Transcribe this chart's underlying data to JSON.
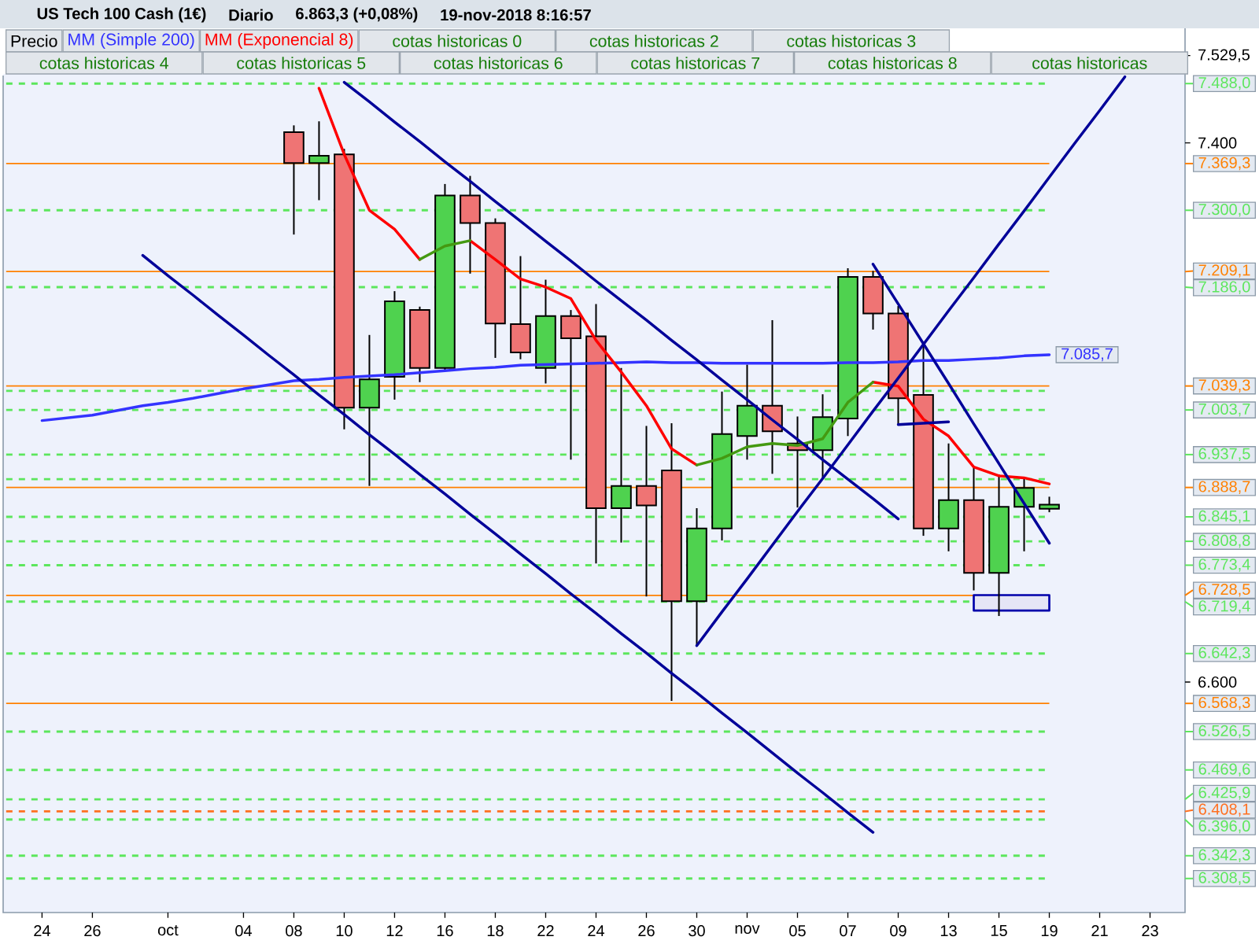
{
  "chart_data": {
    "type": "candlestick",
    "title": "US Tech 100 Cash (1€)",
    "subtitle": "Diario",
    "annotations": [
      "6.863,3 (+0,08%)",
      "19-nov-2018 8:16:57",
      "cotas historicas 0",
      "cotas historicas 2",
      "cotas historicas 3",
      "cotas historicas 4",
      "cotas historicas 5",
      "cotas historicas 6",
      "cotas historicas 7",
      "cotas historicas 8",
      "cotas historicas"
    ],
    "categories": [
      "24",
      null,
      "26",
      null,
      null,
      "oct",
      null,
      null,
      "04",
      null,
      "08",
      null,
      "10",
      null,
      "12",
      null,
      "16",
      null,
      "18",
      null,
      "22",
      null,
      "24",
      null,
      "26",
      null,
      "30",
      null,
      "nov",
      null,
      "05",
      null,
      "07",
      null,
      "09",
      null,
      "13",
      null,
      "15",
      null,
      "19",
      null,
      "21",
      null,
      "23"
    ],
    "ylim": [
      6258,
      7570
    ],
    "yticks": [
      {
        "value": 6600,
        "label": "6.600"
      },
      {
        "value": 7400,
        "label": "7.400"
      },
      {
        "value": 7529.5,
        "label": "7.529,5"
      }
    ],
    "legend": "top left",
    "series": [
      {
        "name": "Precio",
        "ohlc": [
          null,
          null,
          null,
          null,
          null,
          null,
          null,
          null,
          null,
          null,
          [
            7416,
            7426,
            7264,
            7370
          ],
          [
            7370,
            7432,
            7315,
            7381
          ],
          [
            7383,
            7391,
            6975,
            7007
          ],
          [
            7007,
            7115,
            6891,
            7049
          ],
          [
            7053,
            7180,
            7019,
            7165
          ],
          [
            7152,
            7157,
            7045,
            7066
          ],
          [
            7066,
            7339,
            7062,
            7322
          ],
          [
            7322,
            7351,
            7206,
            7281
          ],
          [
            7281,
            7288,
            7081,
            7132
          ],
          [
            7131,
            7232,
            7079,
            7089
          ],
          [
            7066,
            7197,
            7043,
            7143
          ],
          [
            7143,
            7152,
            6930,
            7110
          ],
          [
            7113,
            7161,
            6776,
            6858
          ],
          [
            6858,
            7066,
            6807,
            6891
          ],
          [
            6891,
            6980,
            6727,
            6862
          ],
          [
            6914,
            6984,
            6572,
            6720
          ],
          [
            6720,
            6858,
            6654,
            6828
          ],
          [
            6828,
            7031,
            6810,
            6968
          ],
          [
            6965,
            7071,
            6930,
            7010
          ],
          [
            7010,
            7137,
            6909,
            6972
          ],
          [
            6954,
            6994,
            6859,
            6944
          ],
          [
            6944,
            7027,
            6901,
            6993
          ],
          [
            6991,
            7214,
            6965,
            7201
          ],
          [
            7201,
            7210,
            7123,
            7147
          ],
          [
            7147,
            7158,
            6982,
            7021
          ],
          [
            7026,
            7099,
            6817,
            6828
          ],
          [
            6828,
            6954,
            6794,
            6870
          ],
          [
            6870,
            6918,
            6736,
            6762
          ],
          [
            6762,
            6905,
            6698,
            6860
          ],
          [
            6860,
            6902,
            6794,
            6888
          ],
          [
            6857,
            6875,
            6852,
            6863.3
          ],
          null,
          null,
          null,
          null
        ],
        "colors": [
          null,
          null,
          null,
          null,
          null,
          null,
          null,
          null,
          null,
          null,
          "#ef7474",
          "#4fd24f",
          "#ef7474",
          "#4fd24f",
          "#4fd24f",
          "#ef7474",
          "#4fd24f",
          "#ef7474",
          "#ef7474",
          "#ef7474",
          "#4fd24f",
          "#ef7474",
          "#ef7474",
          "#4fd24f",
          "#ef7474",
          "#ef7474",
          "#4fd24f",
          "#4fd24f",
          "#4fd24f",
          "#ef7474",
          "#ef7474",
          "#4fd24f",
          "#4fd24f",
          "#ef7474",
          "#ef7474",
          "#ef7474",
          "#4fd24f",
          "#ef7474",
          "#4fd24f",
          "#4fd24f",
          "#4fd24f",
          null,
          null,
          null,
          null
        ]
      },
      {
        "name": "MM (Simple 200)",
        "type": "line",
        "color": "#3333ff",
        "values": [
          6988,
          6992,
          6996,
          7003,
          7010,
          7015,
          7021,
          7028,
          7035,
          7041,
          7047,
          7049,
          7052,
          7054,
          7056,
          7059,
          7062,
          7065,
          7067,
          7070,
          7071,
          7072,
          7073,
          7074,
          7075,
          7074,
          7074,
          7073,
          7073,
          7073,
          7073,
          7073,
          7074,
          7074,
          7075,
          7077,
          7077,
          7079,
          7081,
          7084,
          7085.7,
          null,
          null,
          null,
          null
        ],
        "value_labels": [
          null,
          null,
          null,
          null,
          null,
          null,
          null,
          null,
          null,
          null,
          null,
          null,
          null,
          null,
          null,
          null,
          null,
          null,
          null,
          null,
          null,
          null,
          null,
          null,
          null,
          null,
          null,
          null,
          null,
          null,
          null,
          null,
          null,
          null,
          null,
          null,
          null,
          null,
          null,
          null,
          "7.085,7",
          null,
          null,
          null,
          null
        ]
      },
      {
        "name": "MM (Exponencial 8)",
        "type": "line",
        "color": "#ff0000",
        "values": [
          null,
          null,
          null,
          null,
          null,
          null,
          null,
          null,
          null,
          null,
          null,
          7481,
          7383,
          7300,
          7272,
          7227,
          null,
          7255,
          7227,
          7198,
          7186,
          7169,
          7107,
          7060,
          7010,
          6946,
          6922,
          null,
          null,
          null,
          null,
          null,
          null,
          7045,
          7039,
          6990,
          6965,
          6919,
          6906,
          6903,
          6894,
          null,
          null,
          null,
          null
        ]
      },
      {
        "type": "line",
        "color": "#449911",
        "values": [
          null,
          null,
          null,
          null,
          null,
          null,
          null,
          null,
          null,
          null,
          null,
          null,
          null,
          null,
          null,
          7227,
          7247,
          7255,
          null,
          null,
          null,
          null,
          null,
          null,
          null,
          null,
          6922,
          6932,
          6949,
          6954,
          6951,
          6961,
          7015,
          7045,
          null,
          null,
          null,
          null,
          null,
          null,
          null,
          null,
          null,
          null,
          null
        ]
      },
      {
        "type": "line",
        "color": "#000099",
        "values": [
          null,
          null,
          null,
          null,
          null,
          null,
          null,
          null,
          null,
          null,
          null,
          null,
          7490,
          7461,
          7431,
          7402,
          7372,
          7343,
          7313,
          7284,
          7254,
          7225,
          7195,
          7166,
          7137,
          7107,
          7078,
          7048,
          7019,
          6989,
          6960,
          6930,
          6901,
          6872,
          6842,
          null,
          null,
          null,
          null,
          null,
          null,
          null,
          null,
          null,
          null
        ]
      },
      {
        "type": "line",
        "color": "#000099",
        "values": [
          null,
          null,
          null,
          null,
          7233,
          7203,
          7174,
          7144,
          7115,
          7085,
          7056,
          7026,
          6997,
          6967,
          6938,
          6908,
          6879,
          6849,
          6820,
          6790,
          6761,
          6731,
          6702,
          6672,
          6643,
          6613,
          6584,
          6554,
          6525,
          6495,
          6465,
          6436,
          6406,
          6377,
          null,
          null,
          null,
          null,
          null,
          null,
          null,
          null,
          null,
          null,
          null
        ]
      },
      {
        "type": "line",
        "color": "#000099",
        "values": [
          null,
          null,
          null,
          null,
          null,
          null,
          null,
          null,
          null,
          null,
          null,
          null,
          null,
          null,
          null,
          null,
          null,
          null,
          null,
          null,
          null,
          null,
          null,
          null,
          null,
          null,
          6654,
          6704,
          6753,
          6803,
          6853,
          6902,
          6952,
          7002,
          7051,
          7101,
          7151,
          7200,
          7250,
          7299,
          7349,
          7399,
          7448,
          7498,
          null
        ]
      },
      {
        "type": "line",
        "color": "#000099",
        "values": [
          null,
          null,
          null,
          null,
          null,
          null,
          null,
          null,
          null,
          null,
          null,
          null,
          null,
          null,
          null,
          null,
          null,
          null,
          null,
          null,
          null,
          null,
          null,
          null,
          null,
          null,
          null,
          null,
          null,
          null,
          null,
          null,
          null,
          7220,
          7161,
          7102,
          7043,
          6983,
          6924,
          6865,
          6806,
          null,
          null,
          null,
          null
        ]
      },
      {
        "type": "line",
        "color": "#000099",
        "values": [
          null,
          null,
          null,
          null,
          null,
          null,
          null,
          null,
          null,
          null,
          null,
          null,
          null,
          null,
          null,
          null,
          null,
          null,
          null,
          null,
          null,
          null,
          null,
          null,
          null,
          null,
          null,
          null,
          null,
          null,
          null,
          null,
          null,
          null,
          6982,
          6984,
          6986,
          null,
          null,
          null,
          null,
          null,
          null,
          null,
          null
        ]
      },
      {
        "type": "line",
        "color": "#0000aa",
        "values": [
          null,
          null,
          null,
          null,
          null,
          null,
          null,
          null,
          null,
          null,
          null,
          null,
          null,
          null,
          null,
          null,
          null,
          null,
          null,
          null,
          null,
          null,
          null,
          null,
          null,
          null,
          null,
          null,
          null,
          null,
          null,
          null,
          null,
          null,
          null,
          null,
          null,
          null,
          null,
          null,
          null,
          null,
          null,
          null,
          null
        ],
        "upper": [
          null,
          null,
          null,
          null,
          null,
          null,
          null,
          null,
          null,
          null,
          null,
          null,
          null,
          null,
          null,
          null,
          null,
          null,
          null,
          null,
          null,
          null,
          null,
          null,
          null,
          null,
          null,
          null,
          null,
          null,
          null,
          null,
          null,
          null,
          null,
          null,
          null,
          6729,
          6729,
          6729,
          6729,
          null,
          null,
          null,
          null
        ],
        "lower": [
          null,
          null,
          null,
          null,
          null,
          null,
          null,
          null,
          null,
          null,
          null,
          null,
          null,
          null,
          null,
          null,
          null,
          null,
          null,
          null,
          null,
          null,
          null,
          null,
          null,
          null,
          null,
          null,
          null,
          null,
          null,
          null,
          null,
          null,
          null,
          null,
          null,
          6706,
          6706,
          6706,
          6706,
          null,
          null,
          null,
          null
        ]
      }
    ],
    "ref_lines": [
      {
        "axis": "y",
        "value": 7488,
        "label": "7.488,0",
        "color": "#5ce65c",
        "line_style": "dashed"
      },
      {
        "axis": "y",
        "value": 7369.3,
        "label": "7.369,3",
        "color": "#ff8000"
      },
      {
        "axis": "y",
        "value": 7300,
        "label": "7.300,0",
        "color": "#5ce65c",
        "line_style": "dashed"
      },
      {
        "axis": "y",
        "value": 7209.1,
        "label": "7.209,1",
        "color": "#ff8000"
      },
      {
        "axis": "y",
        "value": 7186,
        "label": "7.186,0",
        "color": "#5ce65c",
        "line_style": "dashed"
      },
      {
        "axis": "y",
        "value": 7039.3,
        "label": "7.039,3",
        "color": "#ff8000"
      },
      {
        "axis": "y",
        "value": 7032,
        "color": "#5ce65c",
        "line_style": "dashed"
      },
      {
        "axis": "y",
        "value": 7003.7,
        "label": "7.003,7",
        "color": "#5ce65c",
        "line_style": "dashed"
      },
      {
        "axis": "y",
        "value": 6937.5,
        "label": "6.937,5",
        "color": "#5ce65c",
        "line_style": "dashed"
      },
      {
        "axis": "y",
        "value": 6901,
        "color": "#5ce65c",
        "line_style": "dashed"
      },
      {
        "axis": "y",
        "value": 6888.7,
        "label": "6.888,7",
        "color": "#ff8000"
      },
      {
        "axis": "y",
        "value": 6845.1,
        "label": "6.845,1",
        "color": "#5ce65c",
        "line_style": "dashed"
      },
      {
        "axis": "y",
        "value": 6808.8,
        "label": "6.808,8",
        "color": "#5ce65c",
        "line_style": "dashed"
      },
      {
        "axis": "y",
        "value": 6773.4,
        "label": "6.773,4",
        "color": "#5ce65c",
        "line_style": "dashed"
      },
      {
        "axis": "y",
        "value": 6728.5,
        "label": "6.728,5",
        "color": "#ff8000"
      },
      {
        "axis": "y",
        "value": 6719.4,
        "label": "6.719,4",
        "color": "#5ce65c",
        "line_style": "dashed"
      },
      {
        "axis": "y",
        "value": 6642.3,
        "label": "6.642,3",
        "color": "#5ce65c",
        "line_style": "dashed"
      },
      {
        "axis": "y",
        "value": 6568.3,
        "label": "6.568,3",
        "color": "#ff8000"
      },
      {
        "axis": "y",
        "value": 6526.5,
        "label": "6.526,5",
        "color": "#5ce65c",
        "line_style": "dashed"
      },
      {
        "axis": "y",
        "value": 6469.6,
        "label": "6.469,6",
        "color": "#5ce65c",
        "line_style": "dashed"
      },
      {
        "axis": "y",
        "value": 6425.9,
        "label": "6.425,9",
        "color": "#5ce65c",
        "line_style": "dashed"
      },
      {
        "axis": "y",
        "value": 6408.1,
        "label": "6.408,1",
        "color": "#ff7020",
        "line_style": "dashed"
      },
      {
        "axis": "y",
        "value": 6396,
        "label": "6.396,0",
        "color": "#5ce65c",
        "line_style": "dashed"
      },
      {
        "axis": "y",
        "value": 6342.3,
        "label": "6.342,3",
        "color": "#5ce65c",
        "line_style": "dashed"
      },
      {
        "axis": "y",
        "value": 6308.5,
        "label": "6.308,5",
        "color": "#5ce65c",
        "line_style": "dashed"
      }
    ]
  }
}
